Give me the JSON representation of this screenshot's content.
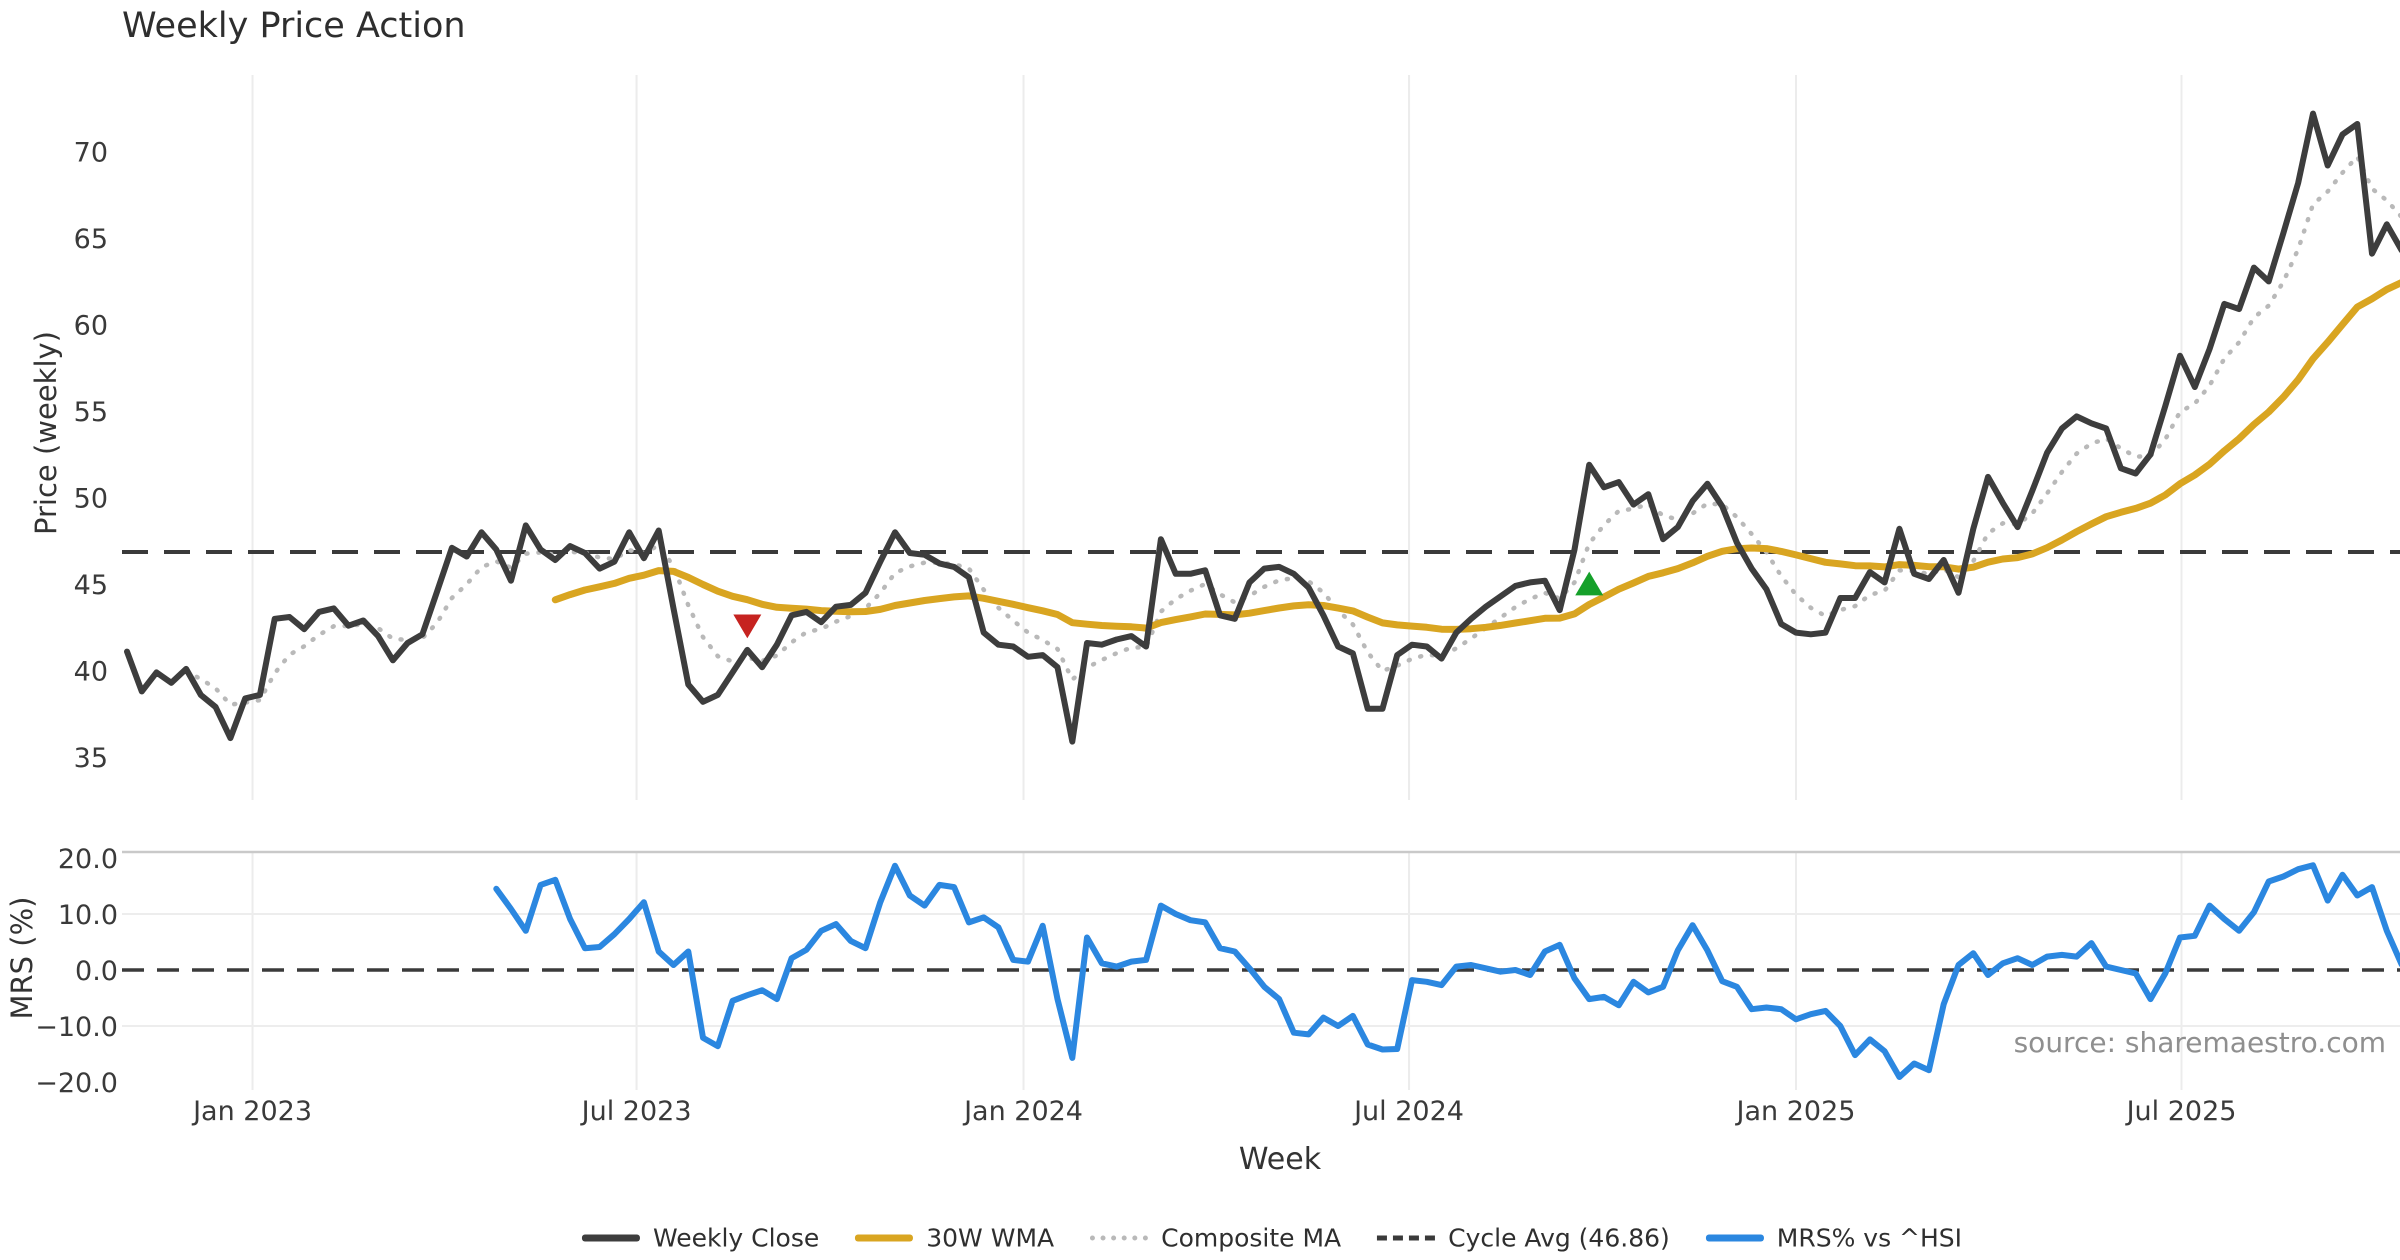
{
  "title": "Weekly Price Action",
  "source": "source: sharemaestro.com",
  "legend": [
    {
      "label": "Weekly Close",
      "color": "#3d3d3d",
      "style": "solid"
    },
    {
      "label": "30W WMA",
      "color": "#d9a521",
      "style": "solid"
    },
    {
      "label": "Composite MA",
      "color": "#b9b9b9",
      "style": "dotted"
    },
    {
      "label": "Cycle Avg (46.86)",
      "color": "#3a3a3a",
      "style": "dashed"
    },
    {
      "label": "MRS% vs ^HSI",
      "color": "#2b87e0",
      "style": "solid"
    }
  ],
  "chart_data": {
    "type": "line",
    "xlabel": "Week",
    "x_ticks": [
      {
        "label": "Jan 2023",
        "week": 8.5
      },
      {
        "label": "Jul 2023",
        "week": 34.5
      },
      {
        "label": "Jan 2024",
        "week": 60.7
      },
      {
        "label": "Jul 2024",
        "week": 86.8
      },
      {
        "label": "Jan 2025",
        "week": 113.0
      },
      {
        "label": "Jul 2025",
        "week": 139.1
      }
    ],
    "price_panel": {
      "ylabel": "Price (weekly)",
      "yticks": [
        35,
        40,
        45,
        50,
        55,
        60,
        65,
        70
      ],
      "ylim": [
        32.2,
        74.6
      ],
      "cycle_avg": 46.86,
      "series": [
        {
          "name": "Weekly Close",
          "color": "#3d3d3d"
        },
        {
          "name": "30W WMA",
          "color": "#d9a521",
          "derived": "weighted_ma",
          "window": 30
        },
        {
          "name": "Composite MA",
          "color": "#b9b9b9",
          "derived": "ema",
          "alpha": 0.33,
          "draw_from_week": 4
        }
      ],
      "weekly_close": [
        41.1,
        38.8,
        39.9,
        39.3,
        40.1,
        38.6,
        37.9,
        36.1,
        38.4,
        38.6,
        43.0,
        43.1,
        42.4,
        43.4,
        43.6,
        42.6,
        42.9,
        42.0,
        40.6,
        41.6,
        42.1,
        44.6,
        47.1,
        46.6,
        48.0,
        47.0,
        45.2,
        48.4,
        47.0,
        46.4,
        47.2,
        46.8,
        45.9,
        46.3,
        48.0,
        46.5,
        48.1,
        43.6,
        39.2,
        38.2,
        38.6,
        39.9,
        41.2,
        40.2,
        41.5,
        43.2,
        43.4,
        42.8,
        43.7,
        43.8,
        44.5,
        46.3,
        48.0,
        46.8,
        46.7,
        46.2,
        46.0,
        45.4,
        42.2,
        41.5,
        41.4,
        40.8,
        40.9,
        40.2,
        35.9,
        41.6,
        41.5,
        41.8,
        42.0,
        41.4,
        47.6,
        45.6,
        45.6,
        45.8,
        43.2,
        43.0,
        45.1,
        45.9,
        46.0,
        45.6,
        44.8,
        43.2,
        41.4,
        41.0,
        37.8,
        37.8,
        40.9,
        41.5,
        41.4,
        40.7,
        42.2,
        43.0,
        43.7,
        44.3,
        44.9,
        45.1,
        45.2,
        43.5,
        47.0,
        51.9,
        50.6,
        50.9,
        49.6,
        50.2,
        47.6,
        48.3,
        49.8,
        50.8,
        49.5,
        47.4,
        45.9,
        44.7,
        42.7,
        42.2,
        42.1,
        42.2,
        44.2,
        44.2,
        45.7,
        45.1,
        48.2,
        45.6,
        45.3,
        46.4,
        44.5,
        48.2,
        51.2,
        49.7,
        48.3,
        50.4,
        52.6,
        54.0,
        54.7,
        54.3,
        54.0,
        51.7,
        51.4,
        52.5,
        55.3,
        58.2,
        56.4,
        58.6,
        61.2,
        60.9,
        63.3,
        62.5,
        65.3,
        68.2,
        72.2,
        69.2,
        71.0,
        71.6,
        64.1,
        65.8,
        64.3
      ],
      "markers": [
        {
          "week": 42,
          "value": 42.6,
          "shape": "triangle-down",
          "color": "#c62320"
        },
        {
          "week": 99,
          "value": 45.0,
          "shape": "triangle-up",
          "color": "#15a02a"
        }
      ]
    },
    "mrs_panel": {
      "ylabel": "MRS (%)",
      "yticks": [
        20.0,
        10.0,
        0.0,
        -10.0,
        -20.0
      ],
      "ylim": [
        -21.1,
        21.1
      ],
      "zero_line": 0.0,
      "series_name": "MRS% vs ^HSI",
      "color": "#2b87e0",
      "start_week": 25,
      "values": [
        14.5,
        10.9,
        7.0,
        15.2,
        16.1,
        9.1,
        3.9,
        4.1,
        6.4,
        9.1,
        12.1,
        3.3,
        0.9,
        3.3,
        -12.1,
        -13.6,
        -5.5,
        -4.5,
        -3.6,
        -5.2,
        2.1,
        3.6,
        7.0,
        8.2,
        5.2,
        3.9,
        12.1,
        18.6,
        13.3,
        11.5,
        15.2,
        14.8,
        8.5,
        9.4,
        7.6,
        1.8,
        1.5,
        7.9,
        -5.2,
        -15.7,
        5.8,
        1.2,
        0.6,
        1.5,
        1.8,
        11.5,
        10.0,
        8.9,
        8.5,
        3.9,
        3.3,
        0.3,
        -3.0,
        -5.2,
        -11.2,
        -11.5,
        -8.5,
        -10.0,
        -8.2,
        -13.3,
        -14.2,
        -14.1,
        -1.8,
        -2.1,
        -2.7,
        0.6,
        0.9,
        0.3,
        -0.3,
        0.0,
        -0.9,
        3.3,
        4.5,
        -1.5,
        -5.2,
        -4.8,
        -6.3,
        -2.1,
        -4.0,
        -3.0,
        3.5,
        8.0,
        3.5,
        -2.0,
        -3.0,
        -7.0,
        -6.7,
        -7.0,
        -8.8,
        -7.9,
        -7.3,
        -10.0,
        -15.2,
        -12.4,
        -14.5,
        -19.1,
        -16.7,
        -17.9,
        -6.1,
        0.9,
        3.0,
        -0.9,
        1.2,
        2.1,
        0.9,
        2.4,
        2.7,
        2.4,
        4.8,
        0.6,
        0.0,
        -0.6,
        -5.2,
        -0.6,
        5.8,
        6.1,
        11.5,
        9.1,
        7.0,
        10.3,
        15.8,
        16.7,
        18.0,
        18.7,
        12.4,
        17.0,
        13.3,
        14.8,
        7.0,
        1.0
      ]
    }
  }
}
